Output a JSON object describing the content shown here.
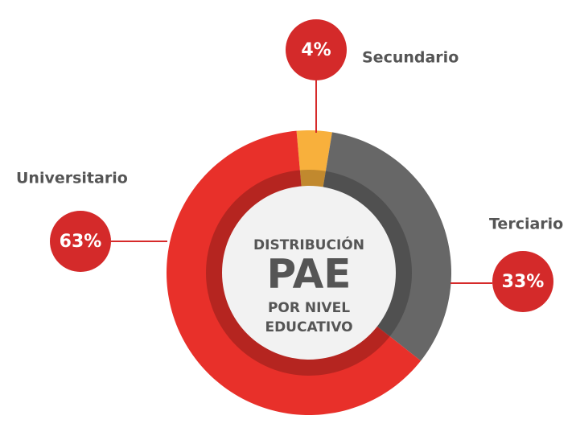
{
  "chart_data": {
    "type": "donut",
    "center_text": [
      "DISTRIBUCIÓN",
      "PAE",
      "POR NIVEL",
      "EDUCATIVO"
    ],
    "categories": [
      "Secundario",
      "Terciario",
      "Universitario"
    ],
    "values": [
      4,
      33,
      63
    ],
    "value_labels": [
      "4%",
      "33%",
      "63%"
    ],
    "colors": [
      "#f8b03c",
      "#676767",
      "#e8302a"
    ]
  }
}
